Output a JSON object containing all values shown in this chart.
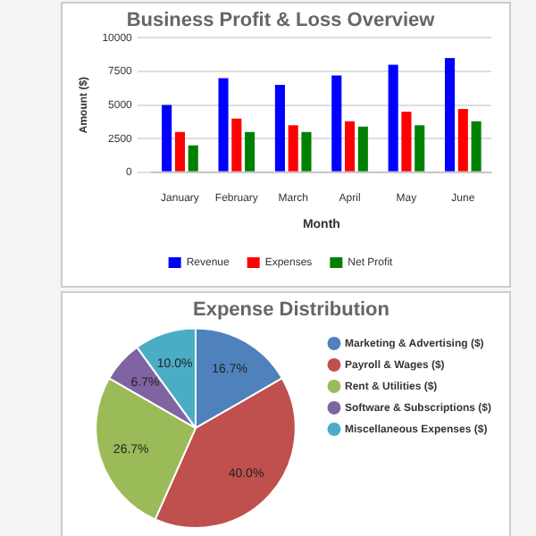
{
  "chart_data": [
    {
      "type": "bar",
      "title": "Business Profit & Loss Overview",
      "xlabel": "Month",
      "ylabel": "Amount ($)",
      "categories": [
        "January",
        "February",
        "March",
        "April",
        "May",
        "June"
      ],
      "series": [
        {
          "name": "Revenue",
          "color": "#0000ff",
          "values": [
            5000,
            7000,
            6500,
            7200,
            8000,
            8500
          ]
        },
        {
          "name": "Expenses",
          "color": "#ff0000",
          "values": [
            3000,
            4000,
            3500,
            3800,
            4500,
            4700
          ]
        },
        {
          "name": "Net Profit",
          "color": "#008000",
          "values": [
            2000,
            3000,
            3000,
            3400,
            3500,
            3800
          ]
        }
      ],
      "ylim": [
        0,
        10000
      ],
      "yticks": [
        0,
        2500,
        5000,
        7500,
        10000
      ],
      "grid": "y",
      "legend": "bottom"
    },
    {
      "type": "pie",
      "title": "Expense Distribution",
      "categories": [
        "Marketing & Advertising ($)",
        "Payroll & Wages ($)",
        "Rent & Utilities ($)",
        "Software & Subscriptions ($)",
        "Miscellaneous Expenses ($)"
      ],
      "values": [
        16.7,
        40.0,
        26.7,
        6.7,
        10.0
      ],
      "colors": [
        "#4f81bd",
        "#c0504d",
        "#9bbb59",
        "#8064a2",
        "#4bacc6"
      ],
      "value_labels": [
        "16.7%",
        "40.0%",
        "26.7%",
        "6.7%",
        "10.0%"
      ],
      "legend": "right"
    }
  ]
}
